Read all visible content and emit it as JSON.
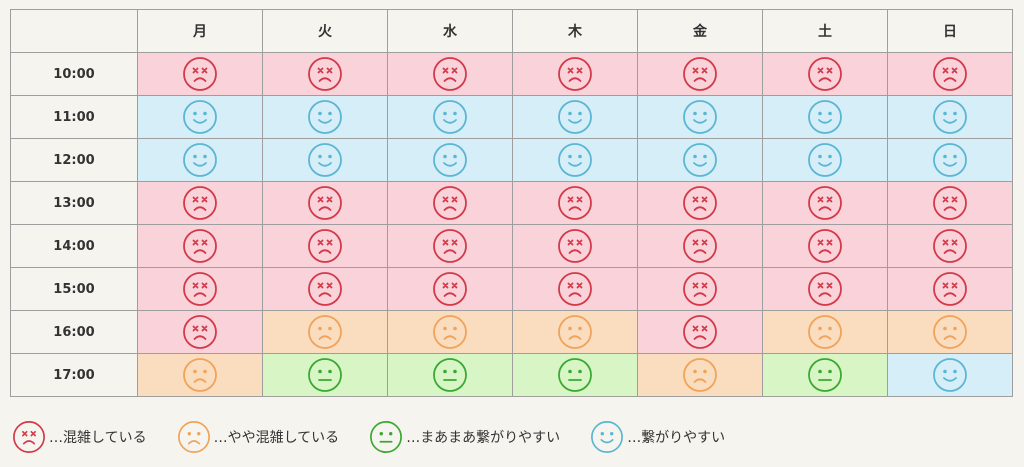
{
  "header": {
    "corner": "",
    "days": [
      "月",
      "火",
      "水",
      "木",
      "金",
      "土",
      "日"
    ]
  },
  "colors": {
    "crowded": {
      "face": "#d23a4a",
      "bg": "#f9d3d9"
    },
    "slightly_crowded": {
      "face": "#f0a35a",
      "bg": "#fadcbe"
    },
    "normal": {
      "face": "#3aa832",
      "bg": "#d8f5c6"
    },
    "easy": {
      "face": "#5bb6d4",
      "bg": "#d6eef8"
    }
  },
  "rows": [
    {
      "time": "10:00",
      "status": [
        "crowded",
        "crowded",
        "crowded",
        "crowded",
        "crowded",
        "crowded",
        "crowded"
      ]
    },
    {
      "time": "11:00",
      "status": [
        "easy",
        "easy",
        "easy",
        "easy",
        "easy",
        "easy",
        "easy"
      ]
    },
    {
      "time": "12:00",
      "status": [
        "easy",
        "easy",
        "easy",
        "easy",
        "easy",
        "easy",
        "easy"
      ]
    },
    {
      "time": "13:00",
      "status": [
        "crowded",
        "crowded",
        "crowded",
        "crowded",
        "crowded",
        "crowded",
        "crowded"
      ]
    },
    {
      "time": "14:00",
      "status": [
        "crowded",
        "crowded",
        "crowded",
        "crowded",
        "crowded",
        "crowded",
        "crowded"
      ]
    },
    {
      "time": "15:00",
      "status": [
        "crowded",
        "crowded",
        "crowded",
        "crowded",
        "crowded",
        "crowded",
        "crowded"
      ]
    },
    {
      "time": "16:00",
      "status": [
        "crowded",
        "slightly_crowded",
        "slightly_crowded",
        "slightly_crowded",
        "crowded",
        "slightly_crowded",
        "slightly_crowded"
      ]
    },
    {
      "time": "17:00",
      "status": [
        "slightly_crowded",
        "normal",
        "normal",
        "normal",
        "slightly_crowded",
        "normal",
        "easy"
      ]
    }
  ],
  "legend": [
    {
      "status": "crowded",
      "icon": "crowded-face-icon",
      "label": "…混雑している"
    },
    {
      "status": "slightly_crowded",
      "icon": "slightly-crowded-face-icon",
      "label": "…やや混雑している"
    },
    {
      "status": "normal",
      "icon": "neutral-face-icon",
      "label": "…まあまあ繋がりやすい"
    },
    {
      "status": "easy",
      "icon": "smile-face-icon",
      "label": "…繋がりやすい"
    }
  ]
}
